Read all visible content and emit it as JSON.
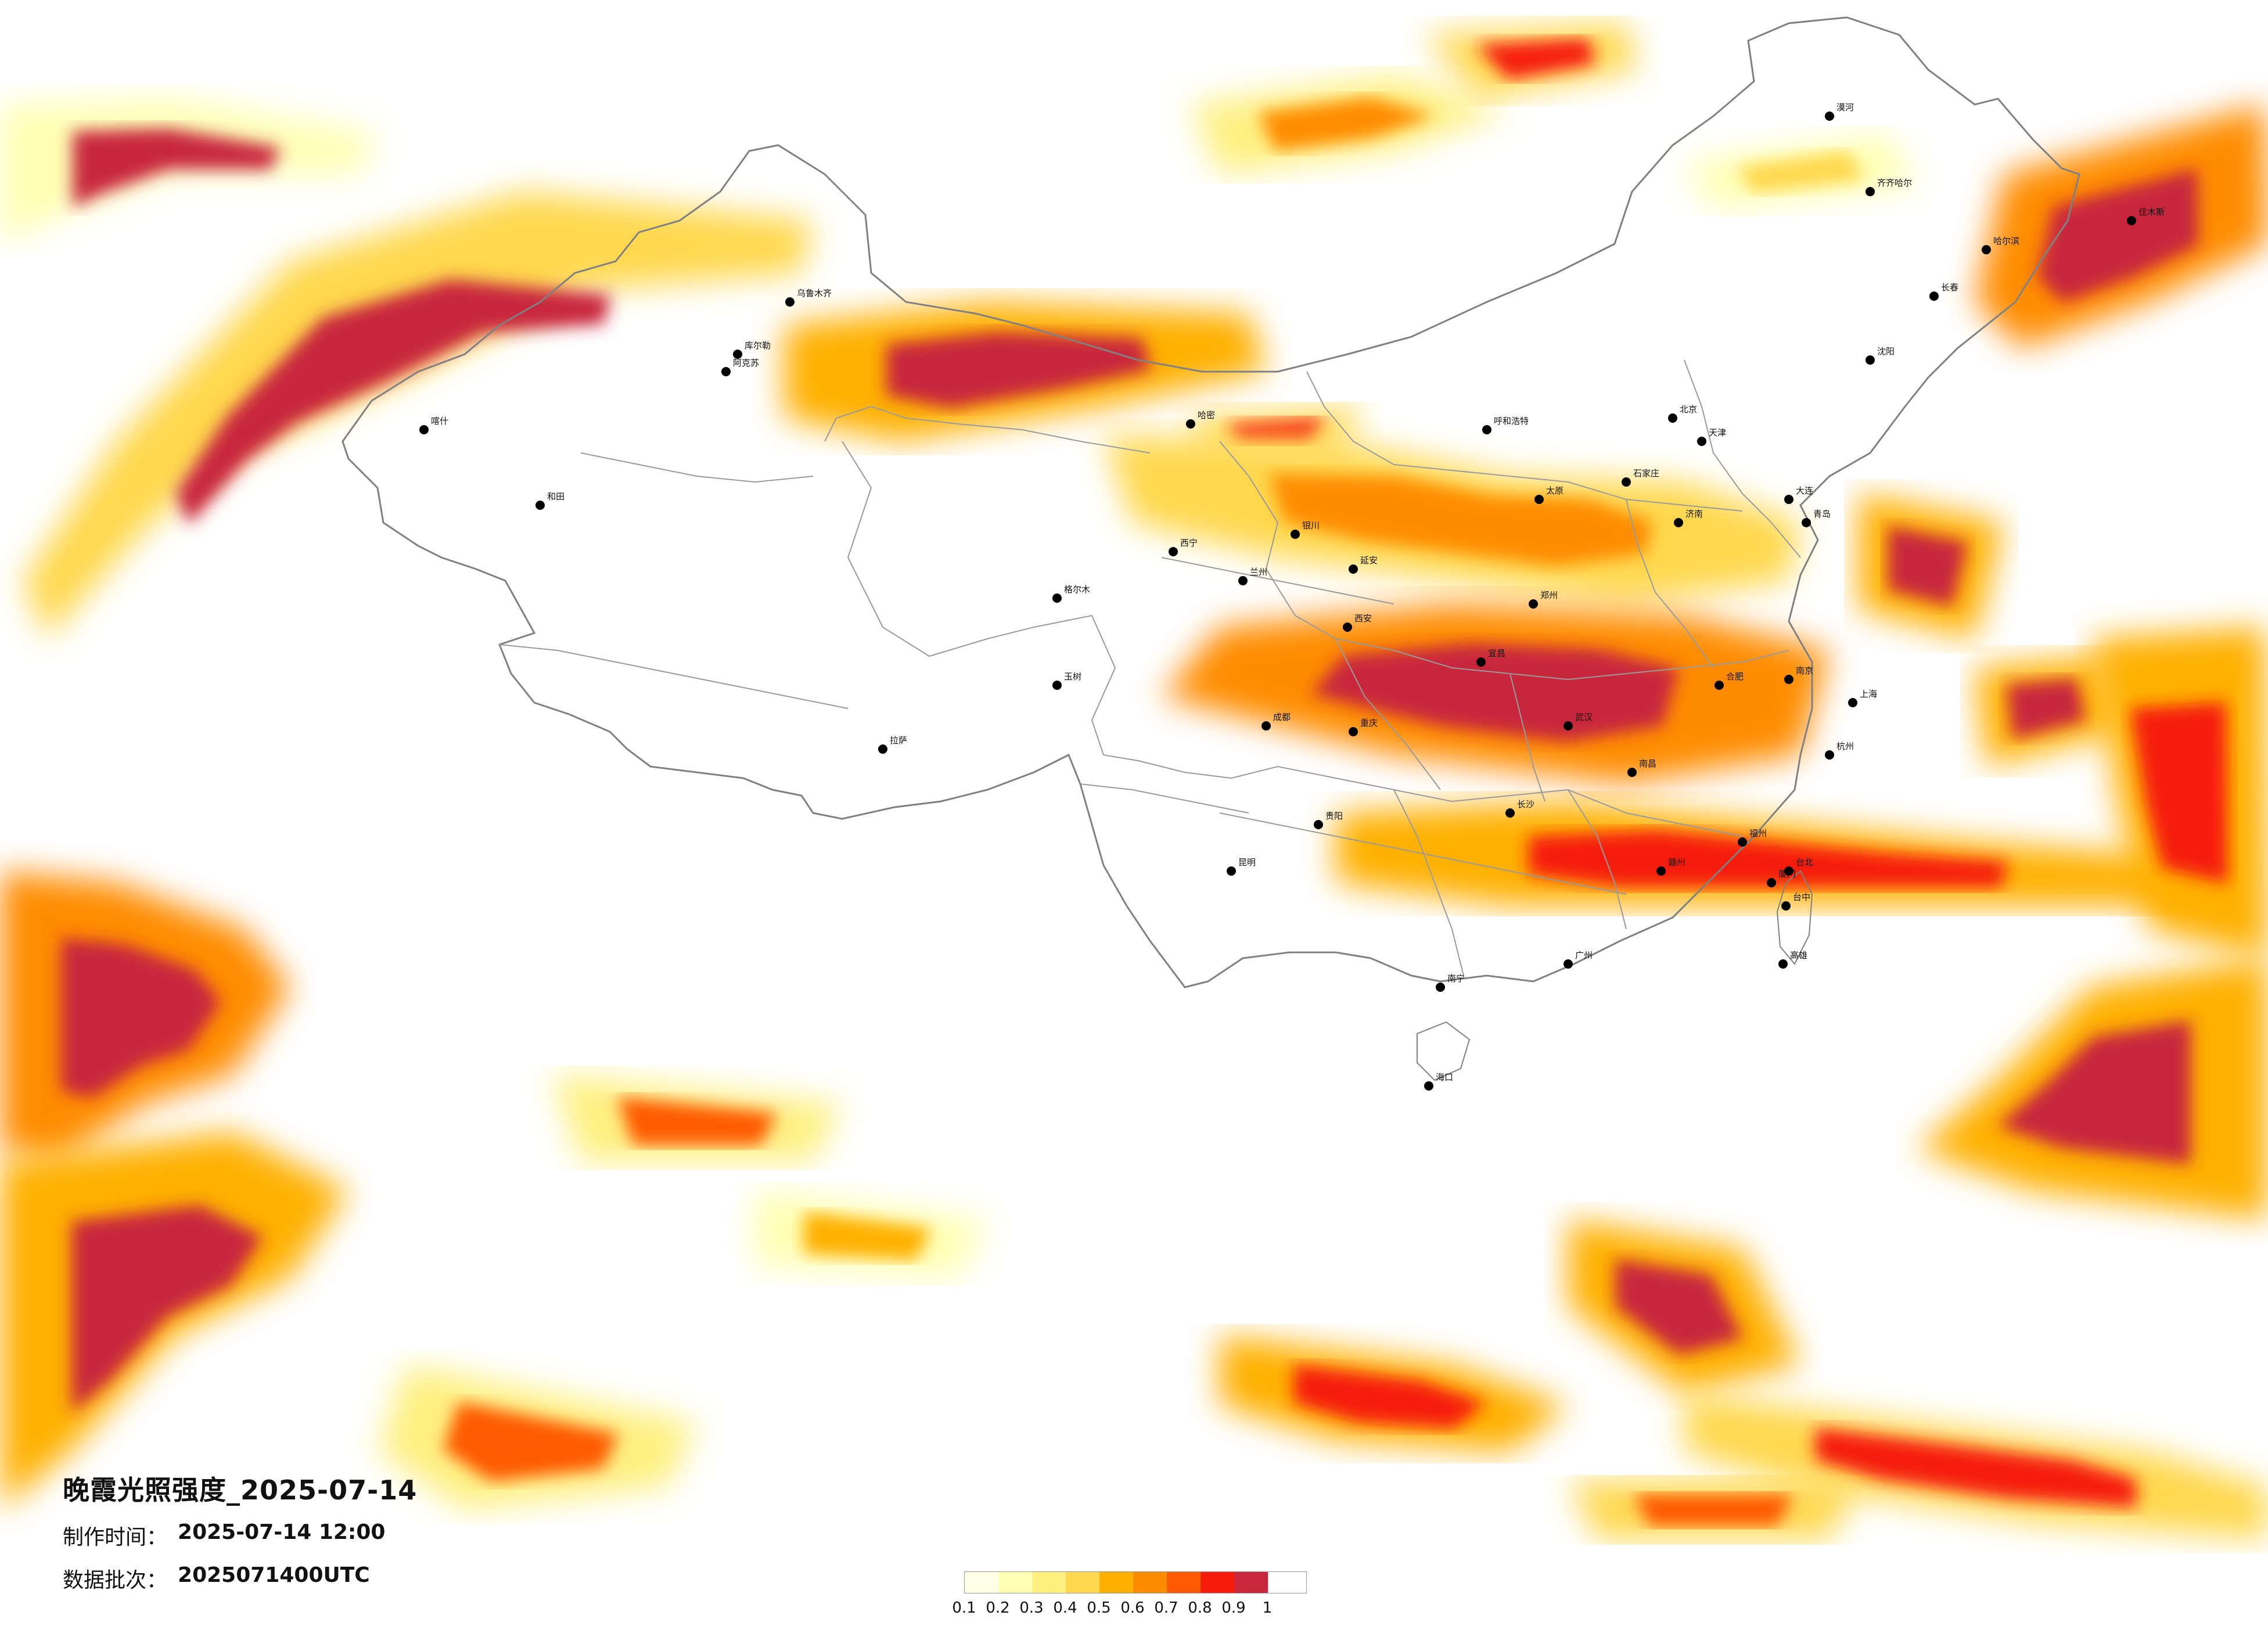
{
  "map": {
    "title": "晚霞光照强度_2025-07-14",
    "made_label": "制作时间：",
    "made_value": "2025-07-14 12:00",
    "batch_label": "数据批次：",
    "batch_value": "2025071400UTC"
  },
  "legend": {
    "colors": [
      "#ffffe6",
      "#ffffb3",
      "#fff080",
      "#ffd84d",
      "#ffb000",
      "#ff8c00",
      "#ff5a00",
      "#f51c0a",
      "#c8283c"
    ],
    "ticks": [
      "0.1",
      "0.2",
      "0.3",
      "0.4",
      "0.5",
      "0.6",
      "0.7",
      "0.8",
      "0.9",
      "1"
    ]
  },
  "cities": [
    "哈尔滨",
    "长春",
    "沈阳",
    "北京",
    "天津",
    "石家庄",
    "太原",
    "呼和浩特",
    "乌鲁木齐",
    "银川",
    "西宁",
    "兰州",
    "西安",
    "郑州",
    "济南",
    "南京",
    "上海",
    "杭州",
    "合肥",
    "武汉",
    "长沙",
    "南昌",
    "福州",
    "广州",
    "南宁",
    "海口",
    "昆明",
    "贵阳",
    "成都",
    "重庆",
    "拉萨",
    "喀什",
    "和田",
    "阿克苏",
    "库尔勒",
    "哈密",
    "格尔木",
    "玉树",
    "齐齐哈尔",
    "佳木斯",
    "漠河",
    "大连",
    "青岛",
    "厦门",
    "台北",
    "台中",
    "高雄",
    "赣州",
    "宜昌",
    "延安"
  ]
}
